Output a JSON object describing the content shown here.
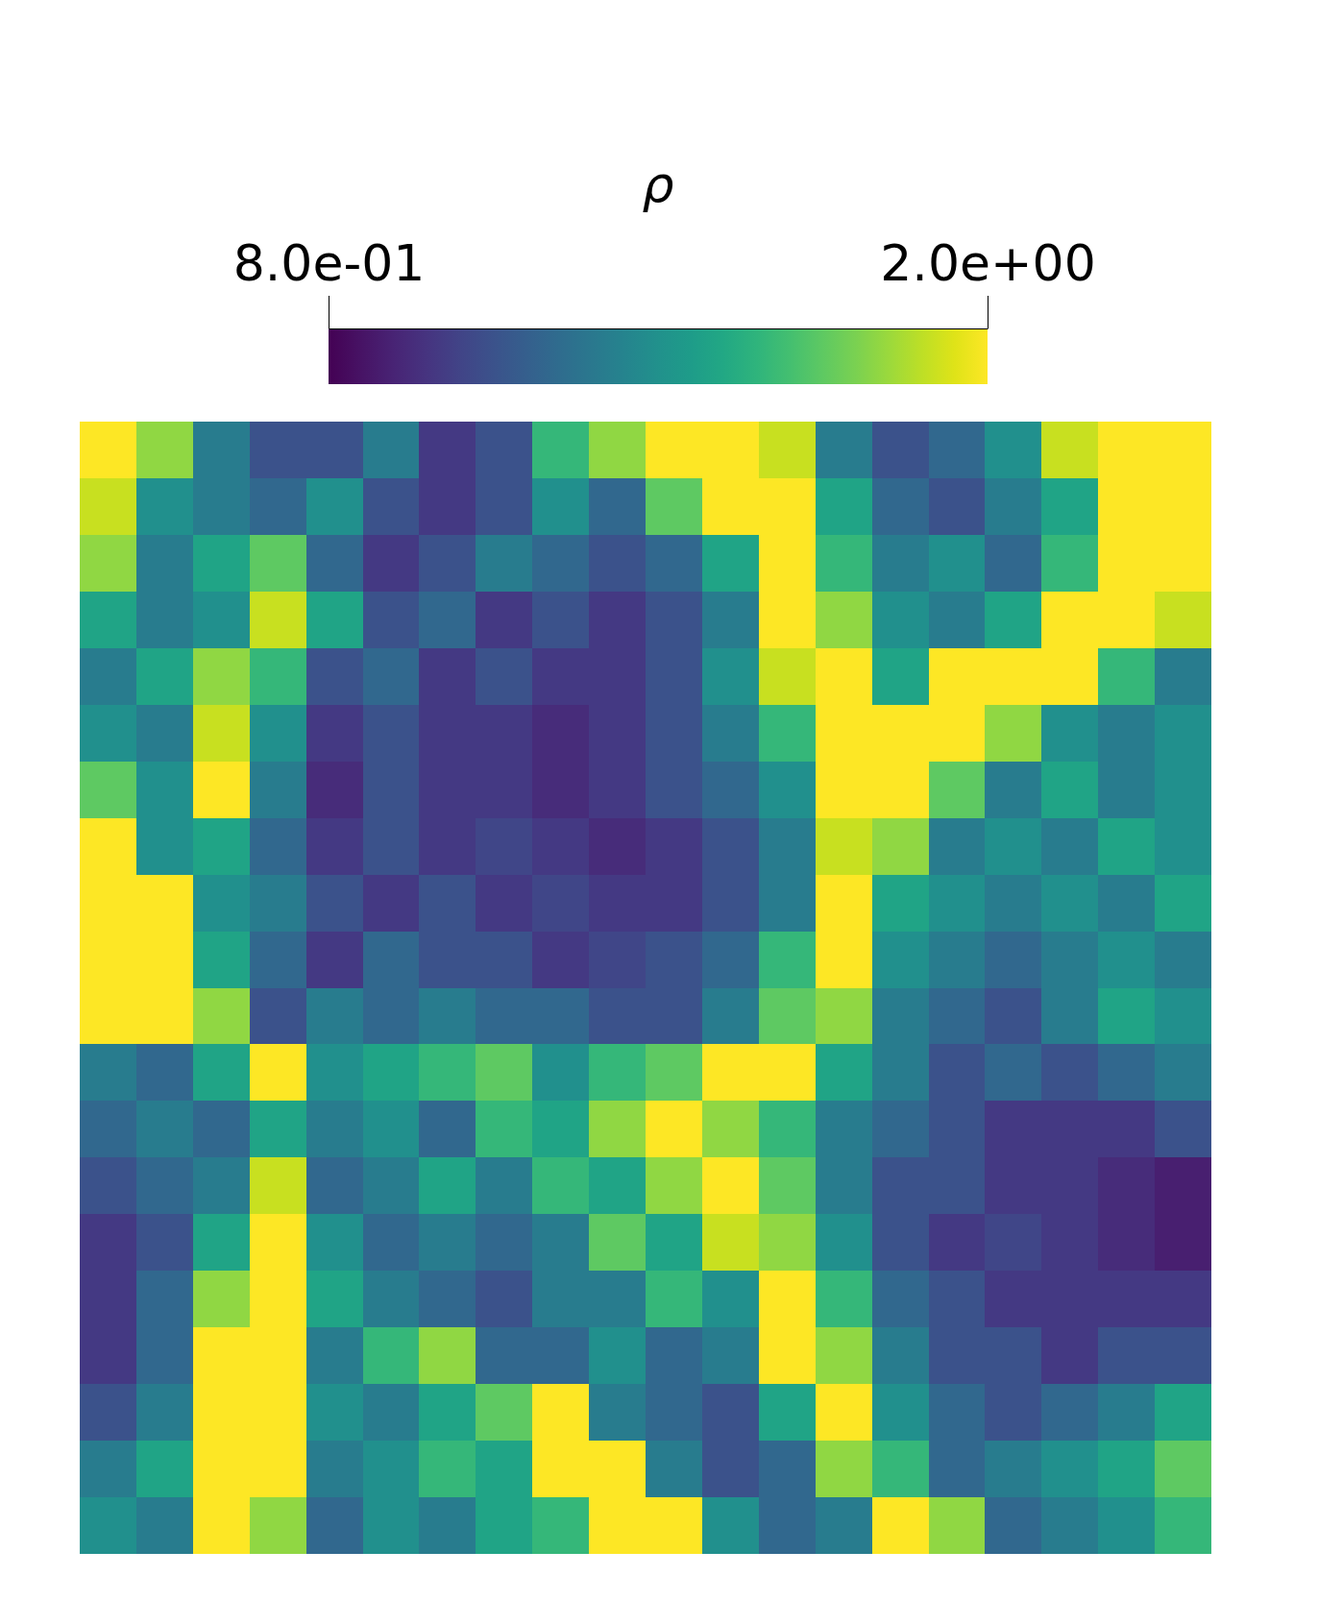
{
  "chart_data": {
    "type": "heatmap",
    "title": "ρ",
    "color": "viridis",
    "tick_labels": false,
    "colorbar": {
      "range": [
        0.8,
        2.0
      ],
      "ticks": [
        {
          "value": 0.8,
          "label": "8.0e-01"
        },
        {
          "value": 2.0,
          "label": "2.0e+00"
        }
      ]
    },
    "values": [
      [
        2.0,
        1.8,
        1.3,
        1.1,
        1.1,
        1.3,
        1.0,
        1.1,
        1.6,
        1.8,
        2.0,
        2.0,
        1.9,
        1.3,
        1.1,
        1.2,
        1.4,
        1.9,
        2.0,
        2.0
      ],
      [
        1.9,
        1.4,
        1.3,
        1.2,
        1.4,
        1.1,
        1.0,
        1.1,
        1.4,
        1.2,
        1.7,
        2.0,
        2.0,
        1.5,
        1.2,
        1.1,
        1.3,
        1.5,
        2.0,
        2.0
      ],
      [
        1.8,
        1.3,
        1.5,
        1.7,
        1.2,
        1.0,
        1.1,
        1.3,
        1.2,
        1.1,
        1.2,
        1.5,
        2.0,
        1.6,
        1.3,
        1.4,
        1.2,
        1.6,
        2.0,
        2.0
      ],
      [
        1.5,
        1.3,
        1.4,
        1.9,
        1.5,
        1.1,
        1.2,
        1.0,
        1.1,
        1.0,
        1.1,
        1.3,
        2.0,
        1.8,
        1.4,
        1.3,
        1.5,
        2.0,
        2.0,
        1.9
      ],
      [
        1.3,
        1.5,
        1.8,
        1.6,
        1.1,
        1.2,
        1.0,
        1.1,
        1.0,
        1.0,
        1.1,
        1.4,
        1.9,
        2.0,
        1.5,
        2.0,
        2.0,
        2.0,
        1.6,
        1.3
      ],
      [
        1.4,
        1.3,
        1.9,
        1.4,
        1.0,
        1.1,
        1.0,
        1.0,
        0.95,
        1.0,
        1.1,
        1.3,
        1.6,
        2.0,
        2.0,
        2.0,
        1.8,
        1.4,
        1.3,
        1.4
      ],
      [
        1.7,
        1.4,
        2.0,
        1.3,
        0.95,
        1.1,
        1.0,
        1.0,
        0.95,
        1.0,
        1.1,
        1.2,
        1.4,
        2.0,
        2.0,
        1.7,
        1.3,
        1.5,
        1.3,
        1.4
      ],
      [
        2.0,
        1.4,
        1.5,
        1.2,
        1.0,
        1.1,
        1.0,
        1.05,
        1.0,
        0.95,
        1.0,
        1.1,
        1.3,
        1.9,
        1.8,
        1.3,
        1.4,
        1.3,
        1.5,
        1.4
      ],
      [
        2.0,
        2.0,
        1.4,
        1.3,
        1.1,
        1.0,
        1.1,
        1.0,
        1.05,
        1.0,
        1.0,
        1.1,
        1.3,
        2.0,
        1.5,
        1.4,
        1.3,
        1.4,
        1.3,
        1.5
      ],
      [
        2.0,
        2.0,
        1.5,
        1.2,
        1.0,
        1.2,
        1.1,
        1.1,
        1.0,
        1.05,
        1.1,
        1.2,
        1.6,
        2.0,
        1.4,
        1.3,
        1.2,
        1.3,
        1.4,
        1.3
      ],
      [
        2.0,
        2.0,
        1.8,
        1.1,
        1.3,
        1.2,
        1.3,
        1.2,
        1.2,
        1.1,
        1.1,
        1.3,
        1.7,
        1.8,
        1.3,
        1.2,
        1.1,
        1.3,
        1.5,
        1.4
      ],
      [
        1.3,
        1.2,
        1.5,
        2.0,
        1.4,
        1.5,
        1.6,
        1.7,
        1.4,
        1.6,
        1.7,
        2.0,
        2.0,
        1.5,
        1.3,
        1.1,
        1.2,
        1.1,
        1.2,
        1.3
      ],
      [
        1.2,
        1.3,
        1.2,
        1.5,
        1.3,
        1.4,
        1.2,
        1.6,
        1.5,
        1.8,
        2.0,
        1.8,
        1.6,
        1.3,
        1.2,
        1.1,
        1.0,
        1.0,
        1.0,
        1.1
      ],
      [
        1.1,
        1.2,
        1.3,
        1.9,
        1.2,
        1.3,
        1.5,
        1.3,
        1.6,
        1.5,
        1.8,
        2.0,
        1.7,
        1.3,
        1.1,
        1.1,
        1.0,
        1.0,
        0.95,
        0.9
      ],
      [
        1.0,
        1.1,
        1.5,
        2.0,
        1.4,
        1.2,
        1.3,
        1.2,
        1.3,
        1.7,
        1.5,
        1.9,
        1.8,
        1.4,
        1.1,
        1.0,
        1.05,
        1.0,
        0.95,
        0.9
      ],
      [
        1.0,
        1.2,
        1.8,
        2.0,
        1.5,
        1.3,
        1.2,
        1.1,
        1.3,
        1.3,
        1.6,
        1.4,
        2.0,
        1.6,
        1.2,
        1.1,
        1.0,
        1.0,
        1.0,
        1.0
      ],
      [
        1.0,
        1.2,
        2.0,
        2.0,
        1.3,
        1.6,
        1.8,
        1.2,
        1.2,
        1.4,
        1.2,
        1.3,
        2.0,
        1.8,
        1.3,
        1.1,
        1.1,
        1.0,
        1.1,
        1.1
      ],
      [
        1.1,
        1.3,
        2.0,
        2.0,
        1.4,
        1.3,
        1.5,
        1.7,
        2.0,
        1.3,
        1.2,
        1.1,
        1.5,
        2.0,
        1.4,
        1.2,
        1.1,
        1.2,
        1.3,
        1.5
      ],
      [
        1.3,
        1.5,
        2.0,
        2.0,
        1.3,
        1.4,
        1.6,
        1.5,
        2.0,
        2.0,
        1.3,
        1.1,
        1.2,
        1.8,
        1.6,
        1.2,
        1.3,
        1.4,
        1.5,
        1.7
      ],
      [
        1.4,
        1.3,
        2.0,
        1.8,
        1.2,
        1.4,
        1.3,
        1.5,
        1.6,
        2.0,
        2.0,
        1.4,
        1.2,
        1.3,
        2.0,
        1.8,
        1.2,
        1.3,
        1.4,
        1.6
      ]
    ]
  }
}
